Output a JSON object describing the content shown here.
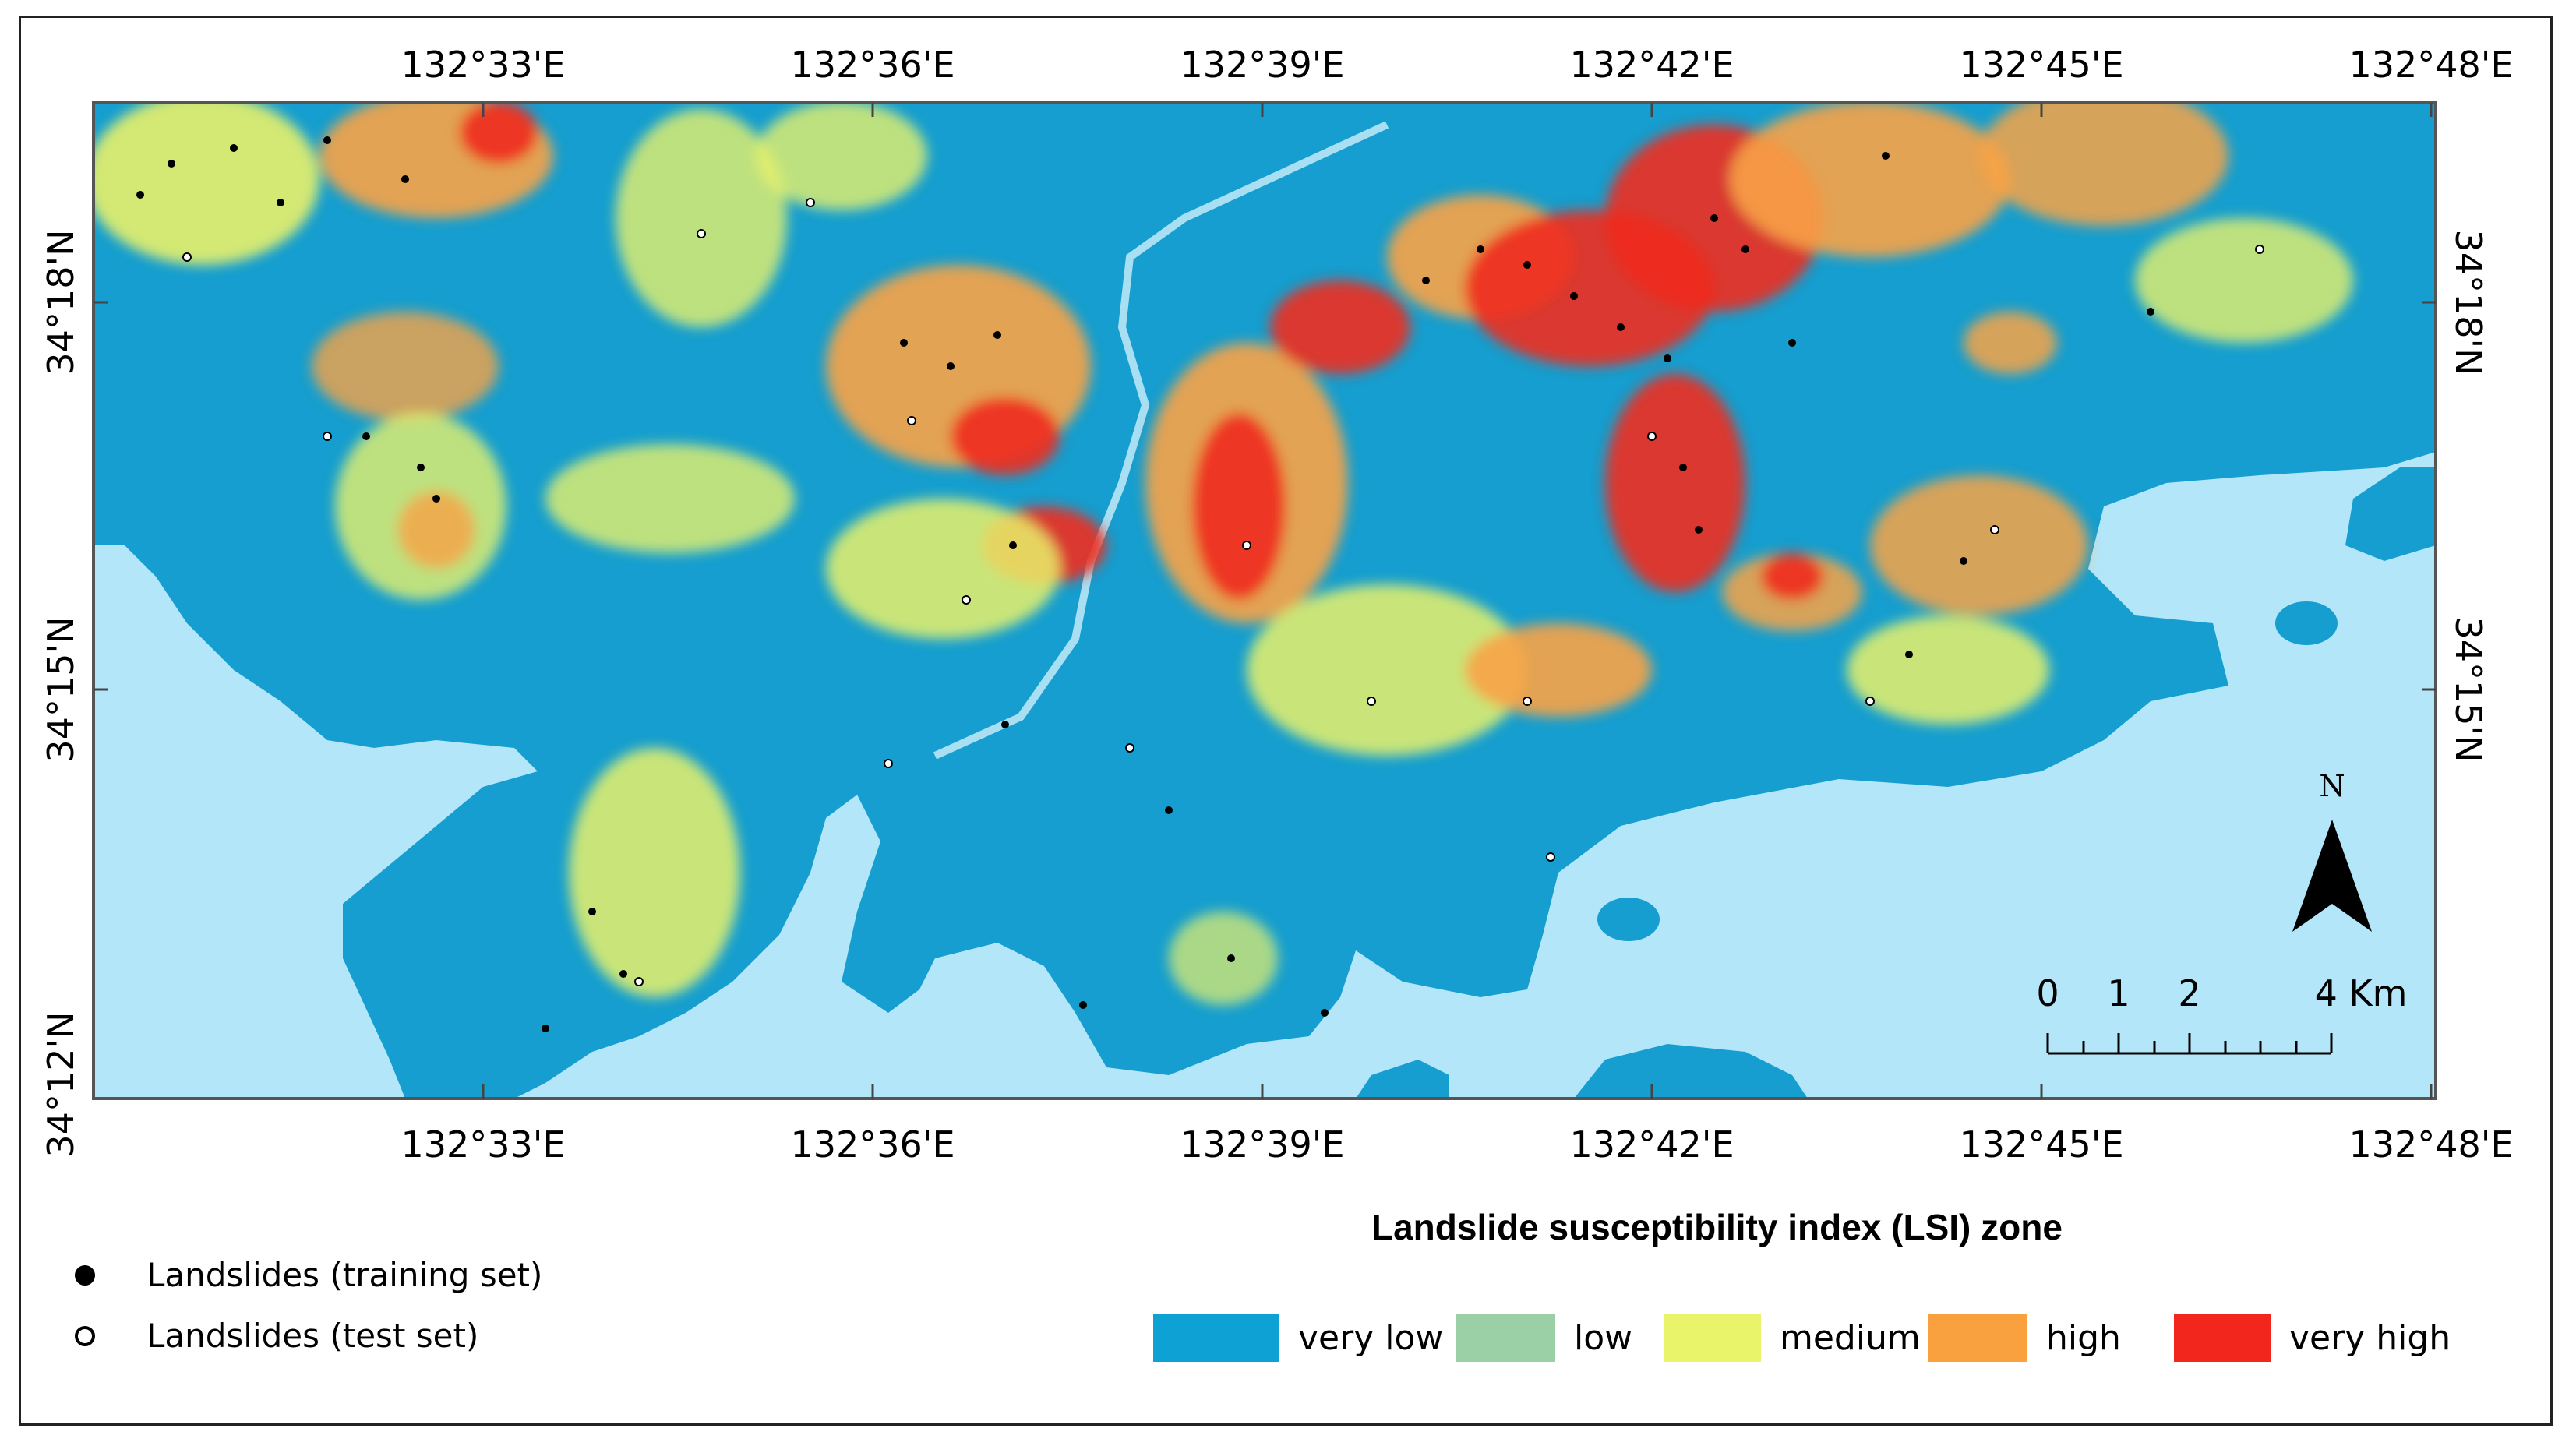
{
  "map": {
    "top_longitudes": [
      "132°33'E",
      "132°36'E",
      "132°39'E",
      "132°42'E",
      "132°45'E",
      "132°48'E"
    ],
    "bottom_longitudes": [
      "132°33'E",
      "132°36'E",
      "132°39'E",
      "132°42'E",
      "132°45'E",
      "132°48'E"
    ],
    "left_latitudes": [
      "34°18'N",
      "34°15'N",
      "34°12'N"
    ],
    "right_latitudes": [
      "34°18'N",
      "34°15'N"
    ],
    "north_arrow_label": "N",
    "scale_bar": {
      "labels": [
        "0",
        "1",
        "2",
        "4 Km"
      ]
    },
    "colors": {
      "sea": "#b3e6f8",
      "land_very_low": "#159ecf",
      "low": "#a0cfa6",
      "medium": "#e9f16a",
      "high": "#f8a346",
      "very_high": "#f02b1e"
    }
  },
  "legend": {
    "title": "Landslide susceptibility index (LSI) zone",
    "zones": [
      {
        "label": "very low",
        "color": "#0ea1d4"
      },
      {
        "label": "low",
        "color": "#9bcfa6"
      },
      {
        "label": "medium",
        "color": "#e9f46a"
      },
      {
        "label": "high",
        "color": "#f9a13e"
      },
      {
        "label": "very high",
        "color": "#f2261d"
      }
    ],
    "landslides": [
      {
        "label": "Landslides (training set)",
        "marker": "filled-circle"
      },
      {
        "label": "Landslides (test set)",
        "marker": "open-circle"
      }
    ]
  }
}
